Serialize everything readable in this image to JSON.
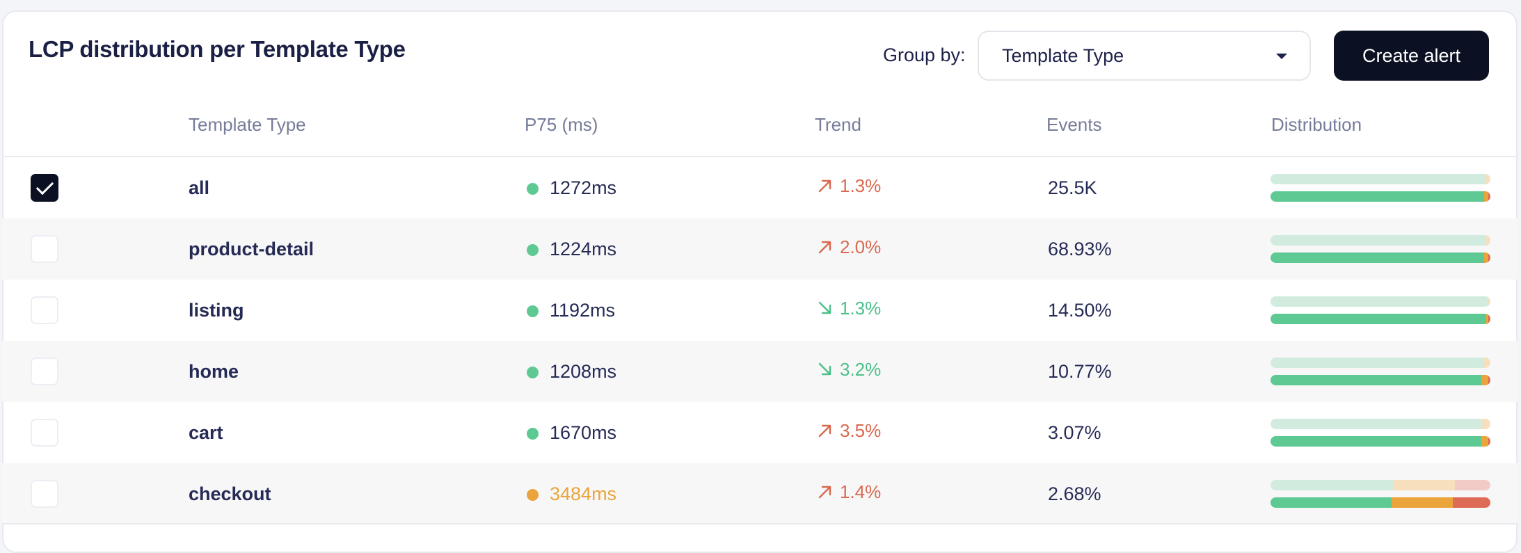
{
  "header": {
    "title": "LCP distribution per Template Type",
    "group_by_label": "Group by:",
    "group_by_value": "Template Type",
    "create_alert_label": "Create alert"
  },
  "columns": [
    "Template Type",
    "P75 (ms)",
    "Trend",
    "Events",
    "Distribution"
  ],
  "colors": {
    "good": "#5ec993",
    "good_light": "#d1ecdf",
    "needs_improvement": "#eaa43b",
    "needs_improvement_light": "#f7dfbd",
    "poor": "#de6b55",
    "poor_light": "#f2cbc6",
    "trend_up": "#d9694f",
    "trend_down": "#4cc08a",
    "text": "#262b55"
  },
  "rows": [
    {
      "checked": true,
      "name": "all",
      "p75": "1272ms",
      "status": "good",
      "trend_dir": "up",
      "trend_icon": "arrow-up-right-icon",
      "trend": "1.3%",
      "events": "25.5K",
      "dist_top": [
        0.98,
        0.02,
        0.0
      ],
      "dist_bottom": [
        0.97,
        0.02,
        0.01
      ]
    },
    {
      "checked": false,
      "name": "product-detail",
      "p75": "1224ms",
      "status": "good",
      "trend_dir": "up",
      "trend_icon": "arrow-up-right-icon",
      "trend": "2.0%",
      "events": "68.93%",
      "dist_top": [
        0.98,
        0.02,
        0.0
      ],
      "dist_bottom": [
        0.97,
        0.02,
        0.01
      ]
    },
    {
      "checked": false,
      "name": "listing",
      "p75": "1192ms",
      "status": "good",
      "trend_dir": "down",
      "trend_icon": "arrow-down-right-icon",
      "trend": "1.3%",
      "events": "14.50%",
      "dist_top": [
        0.99,
        0.01,
        0.0
      ],
      "dist_bottom": [
        0.98,
        0.01,
        0.01
      ]
    },
    {
      "checked": false,
      "name": "home",
      "p75": "1208ms",
      "status": "good",
      "trend_dir": "down",
      "trend_icon": "arrow-down-right-icon",
      "trend": "3.2%",
      "events": "10.77%",
      "dist_top": [
        0.97,
        0.03,
        0.0
      ],
      "dist_bottom": [
        0.96,
        0.03,
        0.01
      ]
    },
    {
      "checked": false,
      "name": "cart",
      "p75": "1670ms",
      "status": "good",
      "trend_dir": "up",
      "trend_icon": "arrow-up-right-icon",
      "trend": "3.5%",
      "events": "3.07%",
      "dist_top": [
        0.96,
        0.04,
        0.0
      ],
      "dist_bottom": [
        0.96,
        0.03,
        0.01
      ]
    },
    {
      "checked": false,
      "name": "checkout",
      "p75": "3484ms",
      "status": "needs_improvement",
      "trend_dir": "up",
      "trend_icon": "arrow-up-right-icon",
      "trend": "1.4%",
      "events": "2.68%",
      "dist_top": [
        0.56,
        0.28,
        0.16
      ],
      "dist_bottom": [
        0.55,
        0.28,
        0.17
      ]
    }
  ]
}
